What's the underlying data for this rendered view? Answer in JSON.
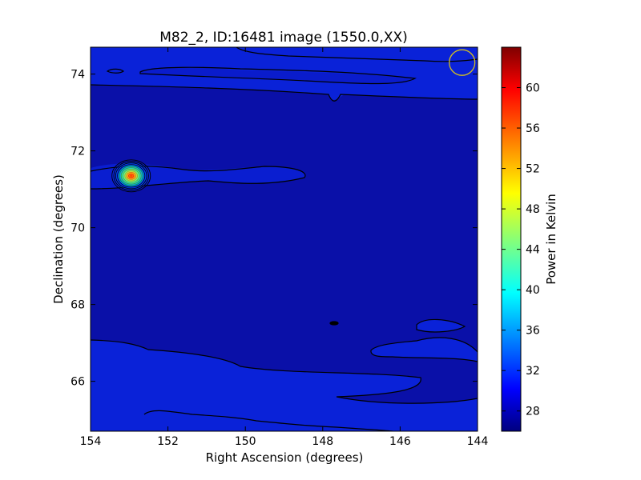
{
  "chart_data": {
    "type": "heatmap",
    "title": "M82_2, ID:16481 image (1550.0,XX)",
    "xlabel": "Right Ascension (degrees)",
    "ylabel": "Declination (degrees)",
    "xlim": [
      154,
      144
    ],
    "ylim": [
      64.7,
      74.7
    ],
    "x_ticks": [
      154,
      152,
      150,
      148,
      146,
      144
    ],
    "y_ticks": [
      66,
      68,
      70,
      72,
      74
    ],
    "colorbar": {
      "label": "Power in Kelvin",
      "range": [
        26,
        64
      ],
      "ticks": [
        28,
        32,
        36,
        40,
        44,
        48,
        52,
        56,
        60
      ],
      "colormap": [
        "#00007f",
        "#0000ff",
        "#00ffff",
        "#ffff00",
        "#ff0000",
        "#7f0000"
      ]
    },
    "background_level": 28,
    "sources": [
      {
        "ra": 152.95,
        "dec": 71.35,
        "peak": 62
      }
    ],
    "beam_marker": {
      "ra": 144.4,
      "dec": 74.3,
      "color": "#d4c020"
    }
  }
}
